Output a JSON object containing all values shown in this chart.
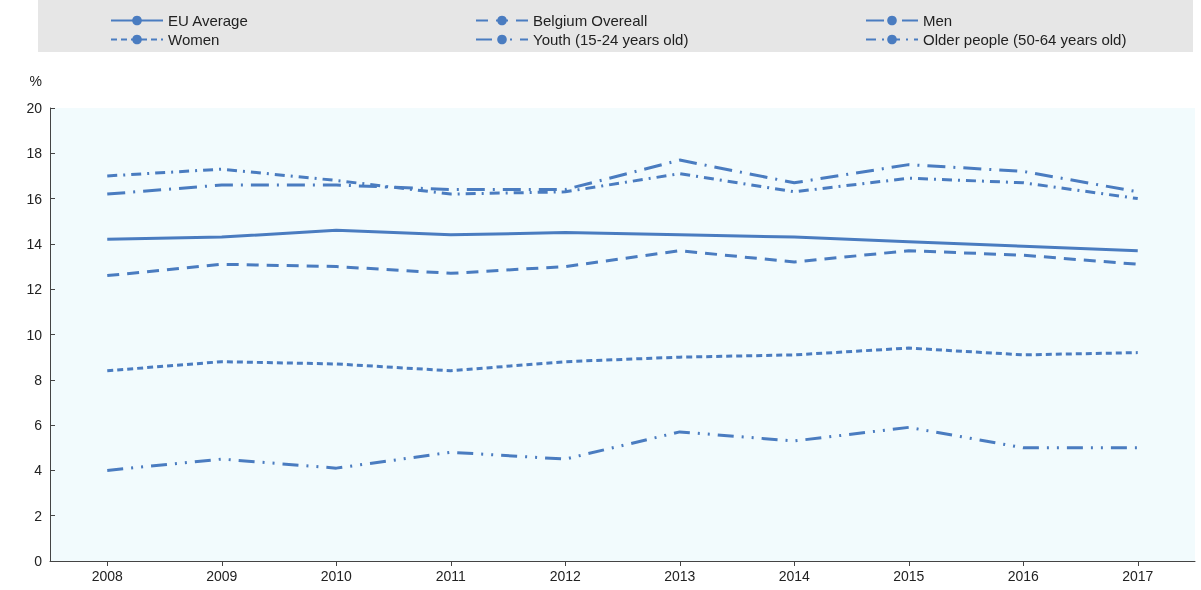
{
  "chart_data": {
    "type": "line",
    "ylabel": "%",
    "categories": [
      "2008",
      "2009",
      "2010",
      "2011",
      "2012",
      "2013",
      "2014",
      "2015",
      "2016",
      "2017"
    ],
    "ylim": [
      0,
      20
    ],
    "yticks": [
      0,
      2,
      4,
      6,
      8,
      10,
      12,
      14,
      16,
      18,
      20
    ],
    "grid": false,
    "legend": "top",
    "marker": "none",
    "series": [
      {
        "name": "EU Average",
        "color": "#4a7cc0",
        "line_style": "solid",
        "values": [
          14.2,
          14.3,
          14.6,
          14.4,
          14.5,
          14.4,
          14.3,
          14.1,
          13.9,
          13.7
        ]
      },
      {
        "name": "Belgium Overeall",
        "color": "#4a7cc0",
        "line_style": "longdash",
        "values": [
          12.6,
          13.1,
          13.0,
          12.7,
          13.0,
          13.7,
          13.2,
          13.7,
          13.5,
          13.1
        ]
      },
      {
        "name": "Men",
        "color": "#4a7cc0",
        "line_style": "longdashdot",
        "values": [
          16.2,
          16.6,
          16.6,
          16.4,
          16.4,
          17.7,
          16.7,
          17.5,
          17.2,
          16.3
        ]
      },
      {
        "name": "Women",
        "color": "#4a7cc0",
        "line_style": "dashed",
        "values": [
          8.4,
          8.8,
          8.7,
          8.4,
          8.8,
          9.0,
          9.1,
          9.4,
          9.1,
          9.2
        ]
      },
      {
        "name": "Youth (15-24 years old)",
        "color": "#4a7cc0",
        "line_style": "dashdotdot",
        "values": [
          4.0,
          4.5,
          4.1,
          4.8,
          4.5,
          5.7,
          5.3,
          5.9,
          5.0,
          5.0
        ]
      },
      {
        "name": "Older people (50-64 years old)",
        "color": "#4a7cc0",
        "line_style": "dashdot",
        "values": [
          17.0,
          17.3,
          16.8,
          16.2,
          16.3,
          17.1,
          16.3,
          16.9,
          16.7,
          16.0
        ]
      }
    ]
  }
}
